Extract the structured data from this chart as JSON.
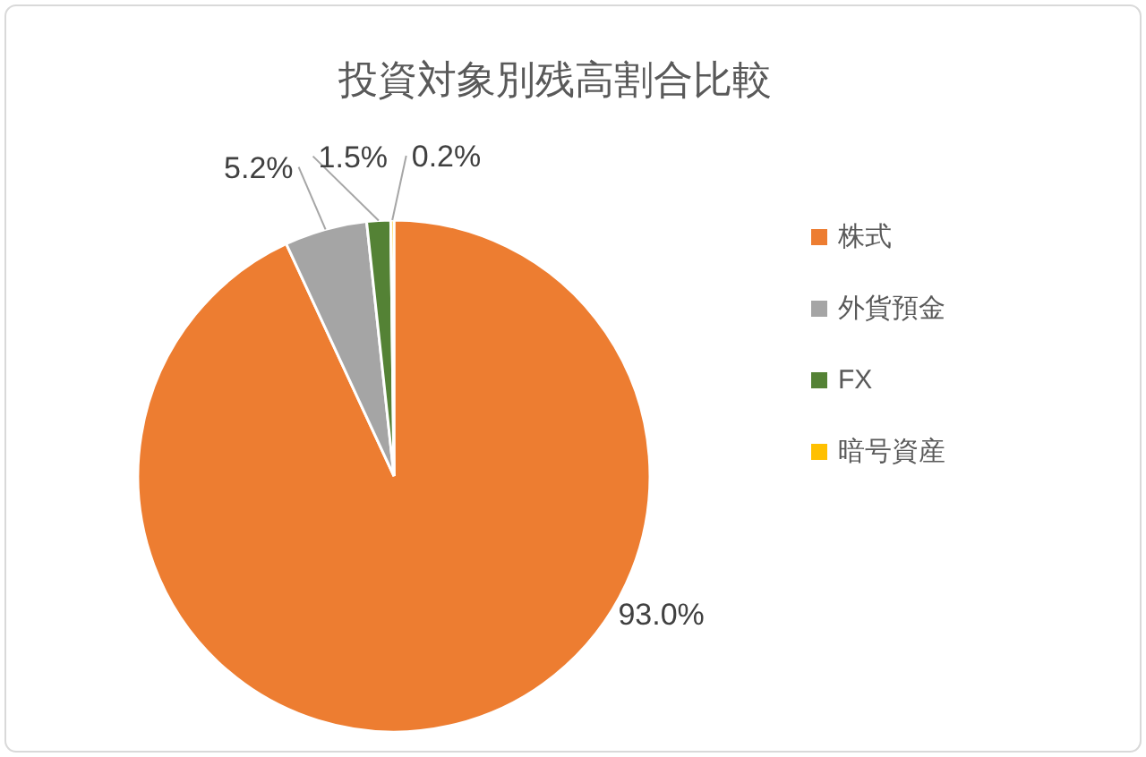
{
  "chart_data": {
    "type": "pie",
    "title": "投資対象別残高割合比較",
    "categories": [
      "株式",
      "外貨預金",
      "FX",
      "暗号資産"
    ],
    "values": [
      93.0,
      5.2,
      1.5,
      0.2
    ],
    "colors": [
      "#ed7d31",
      "#a5a5a5",
      "#548235",
      "#ffc000"
    ],
    "value_labels": [
      "93.0%",
      "5.2%",
      "1.5%",
      "0.2%"
    ],
    "legend": "right"
  }
}
